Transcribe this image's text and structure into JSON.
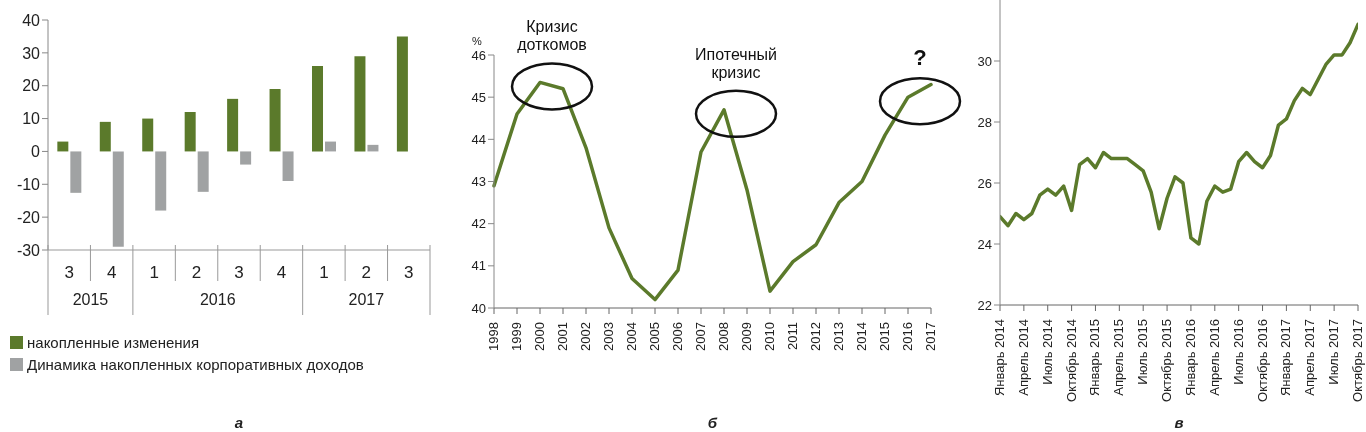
{
  "chart_data": [
    {
      "type": "bar",
      "categories": [
        "3",
        "4",
        "1",
        "2",
        "3",
        "4",
        "1",
        "2",
        "3"
      ],
      "series": [
        {
          "name": "накопленные изменения",
          "color": "#5b7a2b",
          "values": [
            3,
            9,
            10,
            12,
            16,
            19,
            26,
            29,
            35
          ]
        },
        {
          "name": "Динамика накопленных корпоративных доходов",
          "color": "#a0a2a3",
          "values": [
            -12.6,
            -29,
            -18,
            -12.3,
            -4,
            -9,
            3,
            2,
            null
          ]
        }
      ],
      "ylim": [
        -30,
        40
      ],
      "yticks": [
        -30,
        -20,
        -10,
        0,
        10,
        20,
        30,
        40
      ],
      "legend": "bottom left",
      "annotations": [
        "2015",
        "2016",
        "2017",
        "а"
      ]
    },
    {
      "type": "line",
      "ylabel": "%",
      "categories": [
        "1998",
        "1999",
        "2000",
        "2001",
        "2002",
        "2003",
        "2004",
        "2005",
        "2006",
        "2007",
        "2008",
        "2009",
        "2010",
        "2011",
        "2012",
        "2013",
        "2014",
        "2015",
        "2016",
        "2017"
      ],
      "values": [
        42.9,
        44.6,
        45.35,
        45.2,
        43.8,
        41.9,
        40.7,
        40.2,
        40.9,
        43.7,
        44.7,
        42.8,
        40.4,
        41.1,
        41.5,
        42.5,
        43.0,
        44.1,
        45.0,
        45.3
      ],
      "color": "#5b7a2b",
      "ylim": [
        40,
        46
      ],
      "yticks": [
        40,
        41,
        42,
        43,
        44,
        45,
        46
      ],
      "annotations": [
        {
          "text": "Кризис доткомов",
          "x": "2000",
          "y": 45.35
        },
        {
          "text": "Ипотечный кризис",
          "x": "2008",
          "y": 44.7
        },
        {
          "text": "?",
          "x": "2016",
          "y": 45.0
        },
        "б"
      ]
    },
    {
      "type": "line",
      "categories": [
        "Январь 2014",
        null,
        null,
        "Апрель 2014",
        null,
        null,
        "Июль 2014",
        null,
        null,
        "Октябрь 2014",
        null,
        null,
        "Январь 2015",
        null,
        null,
        "Апрель 2015",
        null,
        null,
        "Июль 2015",
        null,
        null,
        "Октябрь 2015",
        null,
        null,
        "Январь 2016",
        null,
        null,
        "Апрель 2016",
        null,
        null,
        "Июль 2016",
        null,
        null,
        "Октябрь 2016",
        null,
        null,
        "Январь 2017",
        null,
        null,
        "Апрель 2017",
        null,
        null,
        "Июль 2017",
        null,
        null,
        "Октябрь 2017"
      ],
      "values": [
        24.9,
        24.6,
        25.0,
        24.8,
        25.0,
        25.6,
        25.8,
        25.6,
        25.9,
        25.1,
        26.6,
        26.8,
        26.5,
        27.0,
        26.8,
        26.8,
        26.8,
        26.6,
        26.4,
        25.7,
        24.5,
        25.5,
        26.2,
        26.0,
        24.2,
        24.0,
        25.4,
        25.9,
        25.7,
        25.8,
        26.7,
        27.0,
        26.7,
        26.5,
        26.9,
        27.9,
        28.1,
        28.7,
        29.1,
        28.9,
        29.4,
        29.9,
        30.2,
        30.2,
        30.6,
        31.2
      ],
      "color": "#5b7a2b",
      "ylim": [
        22,
        32
      ],
      "yticks": [
        22,
        24,
        26,
        28,
        30
      ],
      "annotations": [
        "в"
      ]
    }
  ]
}
